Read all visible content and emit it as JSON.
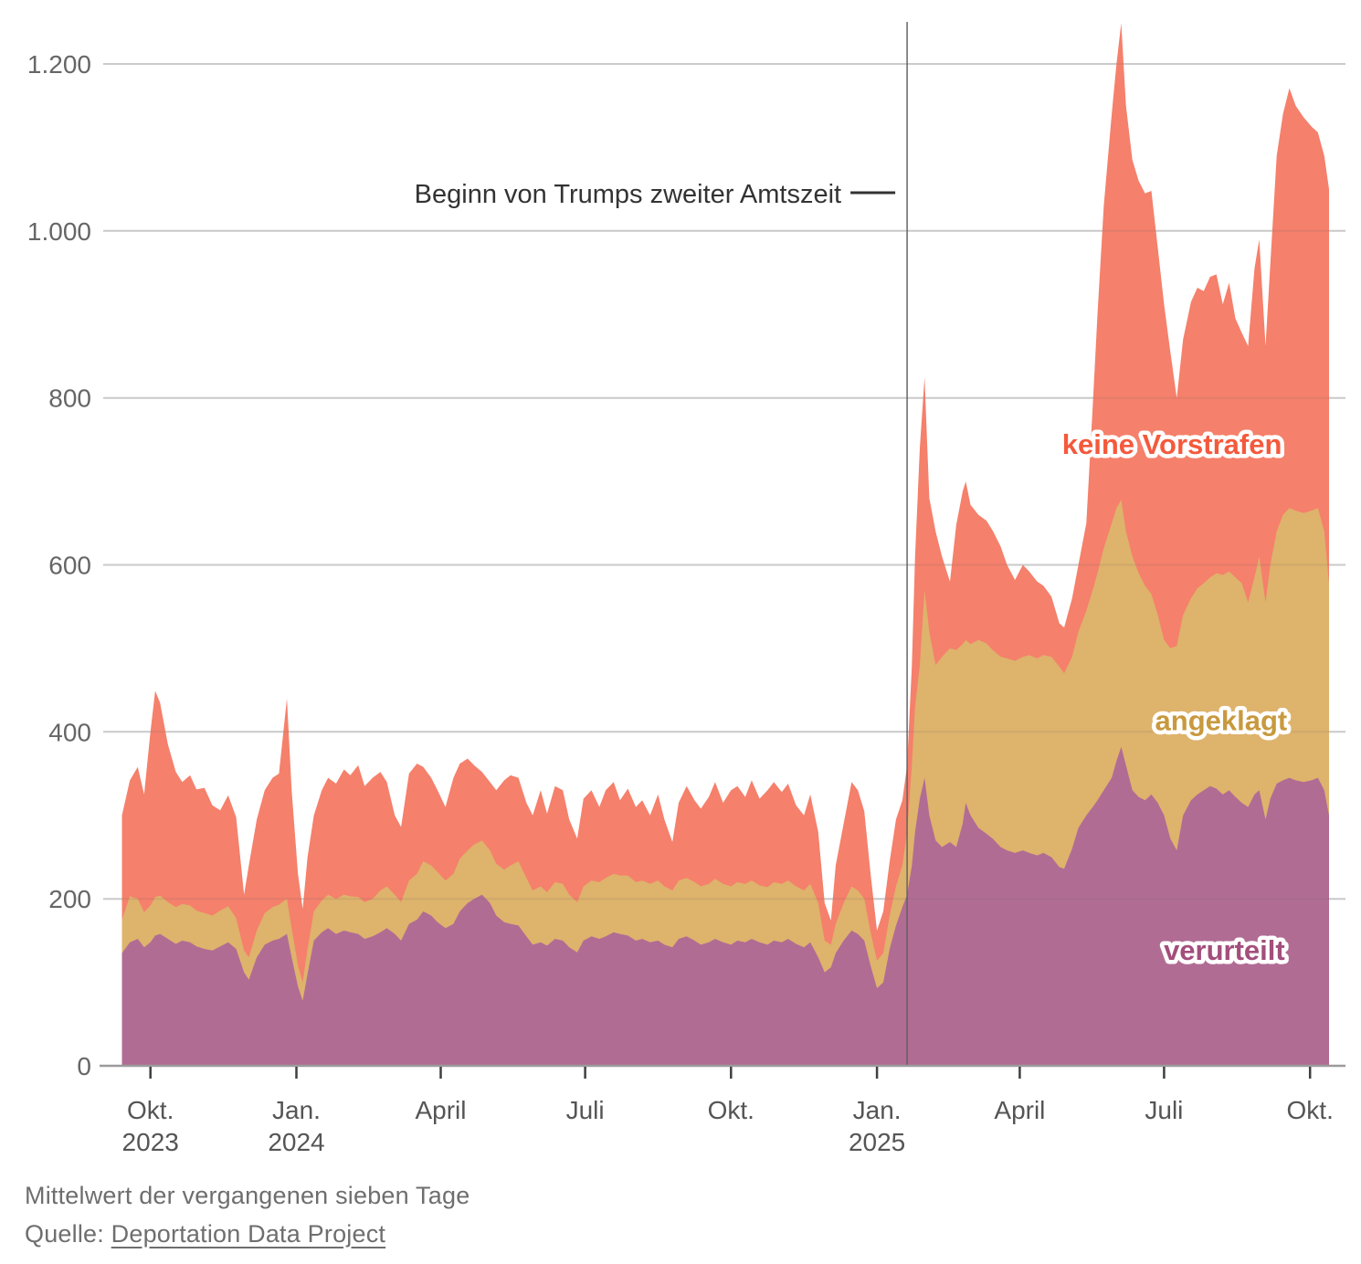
{
  "footer": {
    "note": "Mittelwert der vergangenen sieben Tage",
    "source_prefix": "Quelle: ",
    "source_link": "Deportation Data Project"
  },
  "chart_data": {
    "type": "area",
    "stacked": true,
    "start_date": "2023-09-11",
    "x_domain_days": [
      0,
      763
    ],
    "y_domain": [
      0,
      1250
    ],
    "grid_max": 1200,
    "grid": true,
    "colors": {
      "grid_line": "#d9d9d9",
      "grid_overlay": "rgba(100,100,100,0.13)",
      "axis_line": "#9b9b9b",
      "tick_mark": "#3f3f3f",
      "axis_text": "#666666",
      "annotation_text": "#333333",
      "vertical_line": "#606060",
      "background": "#ffffff"
    },
    "y_axis": {
      "ticks": [
        {
          "value": 0,
          "label": "0"
        },
        {
          "value": 200,
          "label": "200"
        },
        {
          "value": 400,
          "label": "400"
        },
        {
          "value": 600,
          "label": "600"
        },
        {
          "value": 800,
          "label": "800"
        },
        {
          "value": 1000,
          "label": "1.000"
        },
        {
          "value": 1200,
          "label": "1.200"
        }
      ]
    },
    "x_axis": {
      "ticks": [
        {
          "day": 20,
          "line1": "Okt.",
          "line2": "2023"
        },
        {
          "day": 112,
          "line1": "Jan.",
          "line2": "2024"
        },
        {
          "day": 203,
          "line1": "April",
          "line2": ""
        },
        {
          "day": 294,
          "line1": "Juli",
          "line2": ""
        },
        {
          "day": 386,
          "line1": "Okt.",
          "line2": ""
        },
        {
          "day": 478,
          "line1": "Jan.",
          "line2": "2025"
        },
        {
          "day": 568,
          "line1": "April",
          "line2": ""
        },
        {
          "day": 659,
          "line1": "Juli",
          "line2": ""
        },
        {
          "day": 751,
          "line1": "Okt.",
          "line2": ""
        }
      ]
    },
    "annotation": {
      "label": "Beginn von Trumps zweiter Amtszeit",
      "day": 497
    },
    "series": [
      {
        "id": "verurteilt",
        "label": "verurteilt",
        "fill": "#b16c94",
        "label_color": "#a34e7c",
        "label_pos": {
          "day": 697,
          "value": 139
        }
      },
      {
        "id": "angeklagt",
        "label": "angeklagt",
        "fill": "#deb36c",
        "label_color": "#c8993e",
        "label_pos": {
          "day": 695,
          "value": 414
        }
      },
      {
        "id": "keine_vorstrafen",
        "label": "keine Vorstrafen",
        "fill": "#f5806b",
        "label_color": "#f4593c",
        "label_pos": {
          "day": 664,
          "value": 745
        }
      }
    ],
    "days": [
      2,
      7,
      12,
      16,
      20,
      23,
      26,
      31,
      36,
      40,
      45,
      49,
      54,
      59,
      64,
      69,
      74,
      79,
      82,
      87,
      92,
      97,
      101,
      106,
      109,
      113,
      116,
      119,
      123,
      128,
      132,
      137,
      142,
      146,
      151,
      155,
      160,
      165,
      169,
      174,
      178,
      183,
      188,
      192,
      197,
      201,
      206,
      211,
      215,
      220,
      224,
      229,
      234,
      238,
      243,
      247,
      252,
      257,
      261,
      266,
      270,
      275,
      280,
      284,
      289,
      293,
      298,
      303,
      307,
      312,
      316,
      321,
      326,
      330,
      335,
      340,
      344,
      349,
      353,
      358,
      363,
      367,
      372,
      376,
      381,
      386,
      390,
      395,
      399,
      404,
      409,
      413,
      418,
      422,
      427,
      432,
      436,
      441,
      445,
      449,
      452,
      457,
      462,
      466,
      470,
      474,
      478,
      482,
      486,
      490,
      494,
      497,
      500,
      502,
      505,
      508,
      511,
      515,
      519,
      524,
      528,
      532,
      534,
      537,
      542,
      547,
      551,
      556,
      560,
      565,
      570,
      574,
      579,
      583,
      588,
      593,
      596,
      601,
      605,
      610,
      614,
      617,
      621,
      626,
      629,
      632,
      635,
      639,
      643,
      647,
      651,
      655,
      659,
      663,
      667,
      671,
      676,
      680,
      684,
      688,
      692,
      696,
      700,
      704,
      708,
      712,
      716,
      719,
      723,
      726,
      730,
      734,
      738,
      742,
      747,
      752,
      756,
      760,
      763
    ],
    "values": {
      "verurteilt": [
        135,
        148,
        152,
        142,
        148,
        156,
        158,
        152,
        146,
        150,
        148,
        143,
        140,
        138,
        143,
        148,
        140,
        112,
        103,
        130,
        145,
        150,
        152,
        158,
        130,
        95,
        78,
        110,
        150,
        160,
        165,
        158,
        162,
        160,
        158,
        152,
        155,
        160,
        165,
        158,
        150,
        170,
        175,
        185,
        180,
        172,
        165,
        170,
        185,
        195,
        200,
        205,
        195,
        180,
        172,
        170,
        168,
        155,
        145,
        148,
        144,
        152,
        150,
        142,
        136,
        150,
        155,
        152,
        155,
        160,
        158,
        156,
        150,
        152,
        148,
        150,
        145,
        142,
        152,
        155,
        150,
        145,
        148,
        152,
        148,
        145,
        150,
        148,
        152,
        148,
        145,
        150,
        148,
        152,
        146,
        142,
        148,
        130,
        112,
        118,
        135,
        150,
        162,
        158,
        150,
        120,
        93,
        100,
        140,
        168,
        190,
        205,
        240,
        280,
        320,
        345,
        300,
        270,
        262,
        268,
        262,
        290,
        315,
        300,
        285,
        278,
        272,
        262,
        258,
        255,
        258,
        255,
        252,
        255,
        250,
        238,
        236,
        260,
        285,
        300,
        310,
        318,
        330,
        345,
        365,
        382,
        360,
        330,
        322,
        318,
        325,
        315,
        300,
        272,
        258,
        300,
        318,
        325,
        330,
        335,
        332,
        325,
        330,
        322,
        315,
        310,
        325,
        330,
        295,
        320,
        338,
        342,
        345,
        342,
        340,
        342,
        345,
        330,
        300
      ],
      "angeklagt": [
        40,
        55,
        48,
        42,
        44,
        46,
        46,
        44,
        44,
        44,
        44,
        43,
        43,
        42,
        43,
        43,
        37,
        26,
        27,
        32,
        38,
        40,
        41,
        42,
        35,
        25,
        22,
        30,
        35,
        38,
        40,
        42,
        43,
        43,
        44,
        44,
        45,
        50,
        50,
        47,
        46,
        52,
        55,
        60,
        60,
        60,
        57,
        60,
        63,
        63,
        65,
        65,
        63,
        62,
        63,
        70,
        77,
        70,
        65,
        67,
        64,
        68,
        68,
        63,
        60,
        65,
        67,
        68,
        70,
        70,
        70,
        72,
        70,
        70,
        70,
        72,
        70,
        68,
        70,
        70,
        70,
        70,
        70,
        72,
        70,
        70,
        70,
        70,
        70,
        68,
        69,
        70,
        70,
        70,
        69,
        68,
        70,
        65,
        38,
        27,
        35,
        45,
        53,
        52,
        50,
        40,
        33,
        35,
        40,
        47,
        50,
        75,
        120,
        150,
        160,
        225,
        220,
        210,
        228,
        232,
        236,
        215,
        195,
        205,
        225,
        228,
        226,
        228,
        230,
        230,
        232,
        237,
        236,
        237,
        240,
        240,
        234,
        230,
        235,
        245,
        260,
        272,
        290,
        305,
        303,
        296,
        280,
        280,
        268,
        257,
        240,
        225,
        210,
        228,
        245,
        240,
        242,
        247,
        248,
        250,
        258,
        263,
        262,
        263,
        263,
        245,
        260,
        280,
        260,
        280,
        302,
        318,
        323,
        323,
        322,
        323,
        323,
        310,
        277
      ],
      "keine_vorstrafen": [
        125,
        139,
        158,
        141,
        208,
        247,
        231,
        189,
        162,
        146,
        156,
        145,
        150,
        132,
        120,
        133,
        121,
        67,
        110,
        133,
        147,
        155,
        157,
        240,
        165,
        110,
        88,
        110,
        115,
        132,
        140,
        138,
        150,
        145,
        158,
        139,
        145,
        142,
        125,
        95,
        90,
        128,
        132,
        113,
        105,
        98,
        88,
        115,
        114,
        110,
        95,
        82,
        82,
        88,
        107,
        108,
        100,
        90,
        90,
        115,
        94,
        115,
        112,
        90,
        76,
        105,
        108,
        90,
        105,
        110,
        90,
        104,
        90,
        96,
        82,
        103,
        80,
        58,
        93,
        110,
        98,
        93,
        104,
        116,
        97,
        115,
        115,
        104,
        120,
        104,
        116,
        120,
        110,
        116,
        97,
        90,
        107,
        85,
        45,
        29,
        70,
        95,
        125,
        120,
        105,
        70,
        36,
        50,
        65,
        80,
        78,
        80,
        120,
        180,
        260,
        255,
        160,
        160,
        120,
        80,
        150,
        183,
        190,
        167,
        150,
        147,
        143,
        132,
        112,
        97,
        110,
        100,
        92,
        83,
        72,
        52,
        55,
        70,
        80,
        105,
        220,
        310,
        410,
        490,
        532,
        571,
        510,
        475,
        470,
        470,
        483,
        440,
        402,
        355,
        297,
        330,
        355,
        360,
        350,
        360,
        358,
        324,
        346,
        310,
        300,
        307,
        370,
        380,
        307,
        360,
        450,
        480,
        503,
        485,
        474,
        460,
        450,
        450,
        473
      ]
    }
  }
}
